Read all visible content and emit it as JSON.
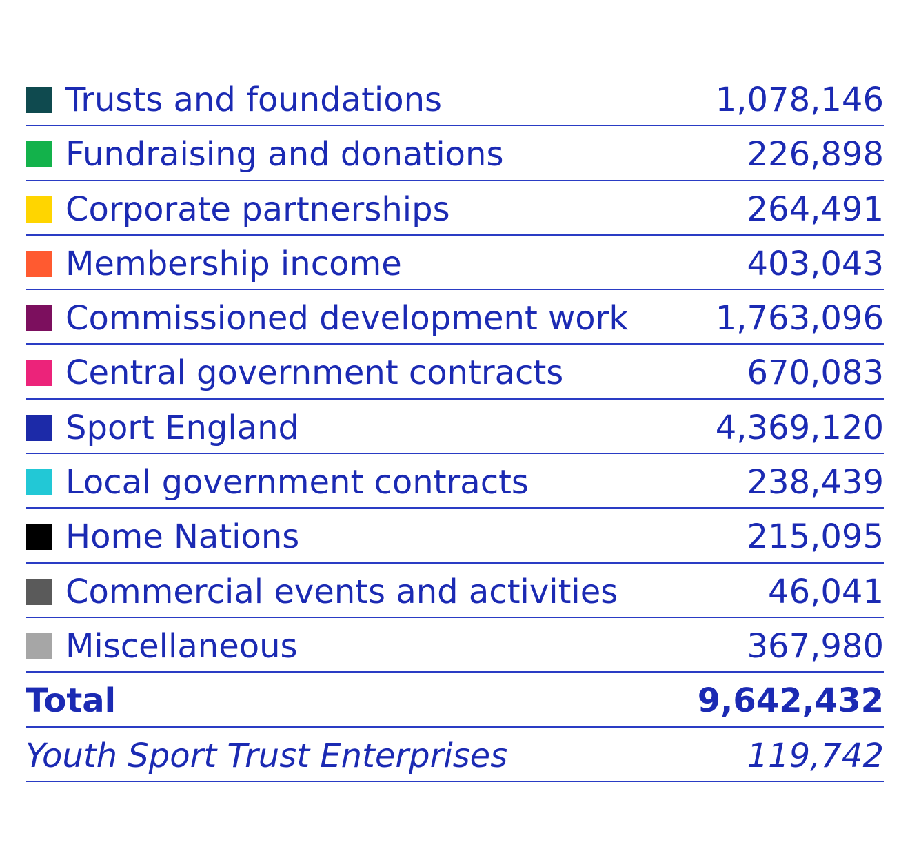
{
  "rows": [
    {
      "label": "Trusts and foundations",
      "value": "1,078,146",
      "color": "#0f4a4f"
    },
    {
      "label": "Fundraising and donations",
      "value": "226,898",
      "color": "#13b24b"
    },
    {
      "label": "Corporate partnerships",
      "value": "264,491",
      "color": "#ffd500"
    },
    {
      "label": "Membership income",
      "value": "403,043",
      "color": "#ff5a30"
    },
    {
      "label": "Commissioned development work",
      "value": "1,763,096",
      "color": "#7c0f5e"
    },
    {
      "label": "Central government contracts",
      "value": "670,083",
      "color": "#ec237a"
    },
    {
      "label": "Sport England",
      "value": "4,369,120",
      "color": "#1c2aa8"
    },
    {
      "label": "Local government contracts",
      "value": "238,439",
      "color": "#22c8d6"
    },
    {
      "label": "Home Nations",
      "value": "215,095",
      "color": "#000000"
    },
    {
      "label": "Commercial events and activities",
      "value": "46,041",
      "color": "#5a5a5a"
    },
    {
      "label": "Miscellaneous",
      "value": "367,980",
      "color": "#a6a6a6"
    }
  ],
  "total": {
    "label": "Total",
    "value": "9,642,432"
  },
  "enterprises": {
    "label": "Youth Sport Trust Enterprises",
    "value": "119,742"
  }
}
